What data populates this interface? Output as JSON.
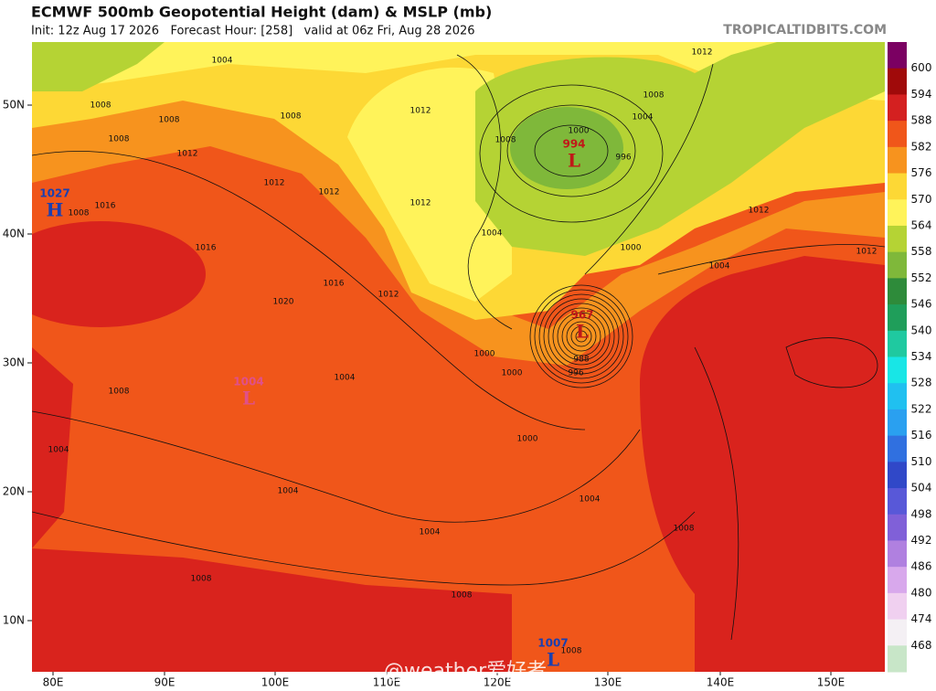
{
  "header": {
    "title": "ECMWF 500mb Geopotential Height (dam) & MSLP (mb)",
    "subtitle": "Init: 12z Aug 17 2026   Forecast Hour: [258]   valid at 06z Fri, Aug 28 2026",
    "credit": "TROPICALTIDBITS.COM"
  },
  "map": {
    "lat_labels": [
      "50N",
      "40N",
      "30N",
      "20N",
      "10N"
    ],
    "lon_labels": [
      "80E",
      "90E",
      "100E",
      "110E",
      "120E",
      "130E",
      "140E",
      "150E"
    ],
    "pressure_centers": [
      {
        "type": "H",
        "value": "1027"
      },
      {
        "type": "L",
        "value": "994"
      },
      {
        "type": "L",
        "value": "967"
      },
      {
        "type": "L",
        "value": "1004"
      },
      {
        "type": "L",
        "value": "1007"
      }
    ],
    "contour_labels": [
      "1004",
      "1008",
      "1008",
      "1008",
      "1012",
      "1008",
      "1012",
      "1012",
      "1012",
      "1012",
      "1016",
      "1008",
      "1012",
      "1008",
      "1004",
      "1000",
      "996",
      "1008",
      "1004",
      "1000",
      "1004",
      "1012",
      "1012",
      "1016",
      "1012",
      "1020",
      "1016",
      "1004",
      "1000",
      "1000",
      "996",
      "988",
      "1008",
      "1004",
      "1004",
      "1004",
      "1004",
      "1000",
      "1008",
      "1008",
      "1008",
      "1008"
    ]
  },
  "colorbar": {
    "labels": [
      600,
      594,
      588,
      582,
      576,
      570,
      564,
      558,
      552,
      546,
      540,
      534,
      528,
      522,
      516,
      510,
      504,
      498,
      492,
      486,
      480,
      474,
      468
    ],
    "colors": [
      "#7b0062",
      "#a00a0a",
      "#d42020",
      "#f0561a",
      "#f7931e",
      "#fdd835",
      "#fff35a",
      "#b5d334",
      "#7fb83a",
      "#2e8b3a",
      "#1f9e5a",
      "#1fc9a0",
      "#18e6e6",
      "#20c0f0",
      "#2aa0f0",
      "#3070e0",
      "#3048c8",
      "#5858d8",
      "#8060d8",
      "#b080e0",
      "#d8a8ec",
      "#f0d0f0",
      "#f4f0f4",
      "#c8e6c8"
    ]
  },
  "watermark": "@weather爱好者"
}
